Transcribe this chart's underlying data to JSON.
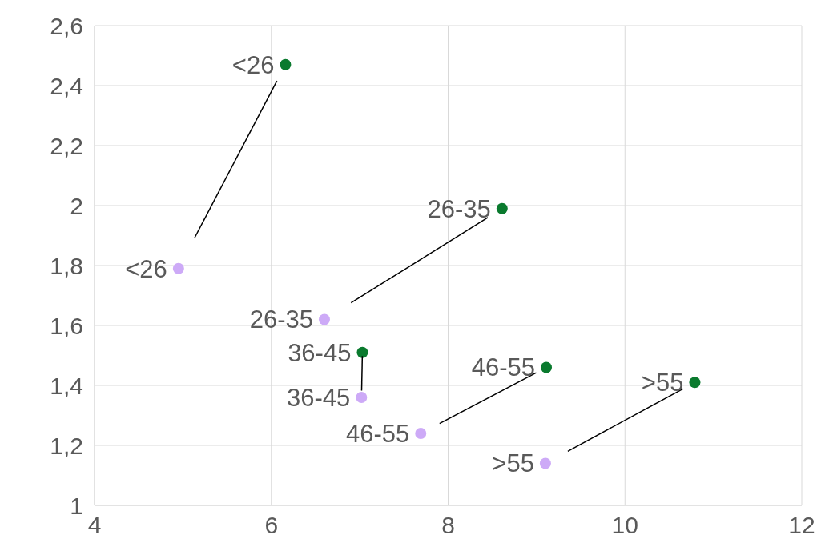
{
  "chart_data": {
    "type": "scatter",
    "series": [
      {
        "color": "#cdaaf7",
        "x": [
          4.95,
          6.6,
          7.02,
          7.69,
          9.1
        ],
        "values": [
          1.79,
          1.62,
          1.36,
          1.24,
          1.14
        ]
      },
      {
        "color": "#0a7a2e",
        "x": [
          6.16,
          8.61,
          7.03,
          9.11,
          10.79
        ],
        "values": [
          2.47,
          1.99,
          1.51,
          1.46,
          1.41
        ]
      }
    ],
    "annotations": [
      {
        "text": "<26",
        "x": 4.95,
        "y": 1.79
      },
      {
        "text": "26-35",
        "x": 6.6,
        "y": 1.62
      },
      {
        "text": "36-45",
        "x": 7.02,
        "y": 1.36
      },
      {
        "text": "46-55",
        "x": 7.69,
        "y": 1.24
      },
      {
        "text": ">55",
        "x": 9.1,
        "y": 1.14
      },
      {
        "text": "<26",
        "x": 6.16,
        "y": 2.47
      },
      {
        "text": "26-35",
        "x": 8.61,
        "y": 1.99
      },
      {
        "text": "36-45",
        "x": 7.03,
        "y": 1.51
      },
      {
        "text": "46-55",
        "x": 9.11,
        "y": 1.46
      },
      {
        "text": ">55",
        "x": 10.79,
        "y": 1.41
      }
    ],
    "xlim": [
      4,
      12
    ],
    "xticks": [
      4,
      6,
      8,
      10,
      12
    ],
    "ylim": [
      1,
      2.6
    ],
    "yticks": [
      {
        "value": 1,
        "label": "1"
      },
      {
        "value": 1.2,
        "label": "1,2"
      },
      {
        "value": 1.4,
        "label": "1,4"
      },
      {
        "value": 1.6,
        "label": "1,6"
      },
      {
        "value": 1.8,
        "label": "1,8"
      },
      {
        "value": 2,
        "label": "2"
      },
      {
        "value": 2.2,
        "label": "2,2"
      },
      {
        "value": 2.4,
        "label": "2,4"
      },
      {
        "value": 2.6,
        "label": "2,6"
      }
    ],
    "grid": true,
    "marker": "circle"
  }
}
